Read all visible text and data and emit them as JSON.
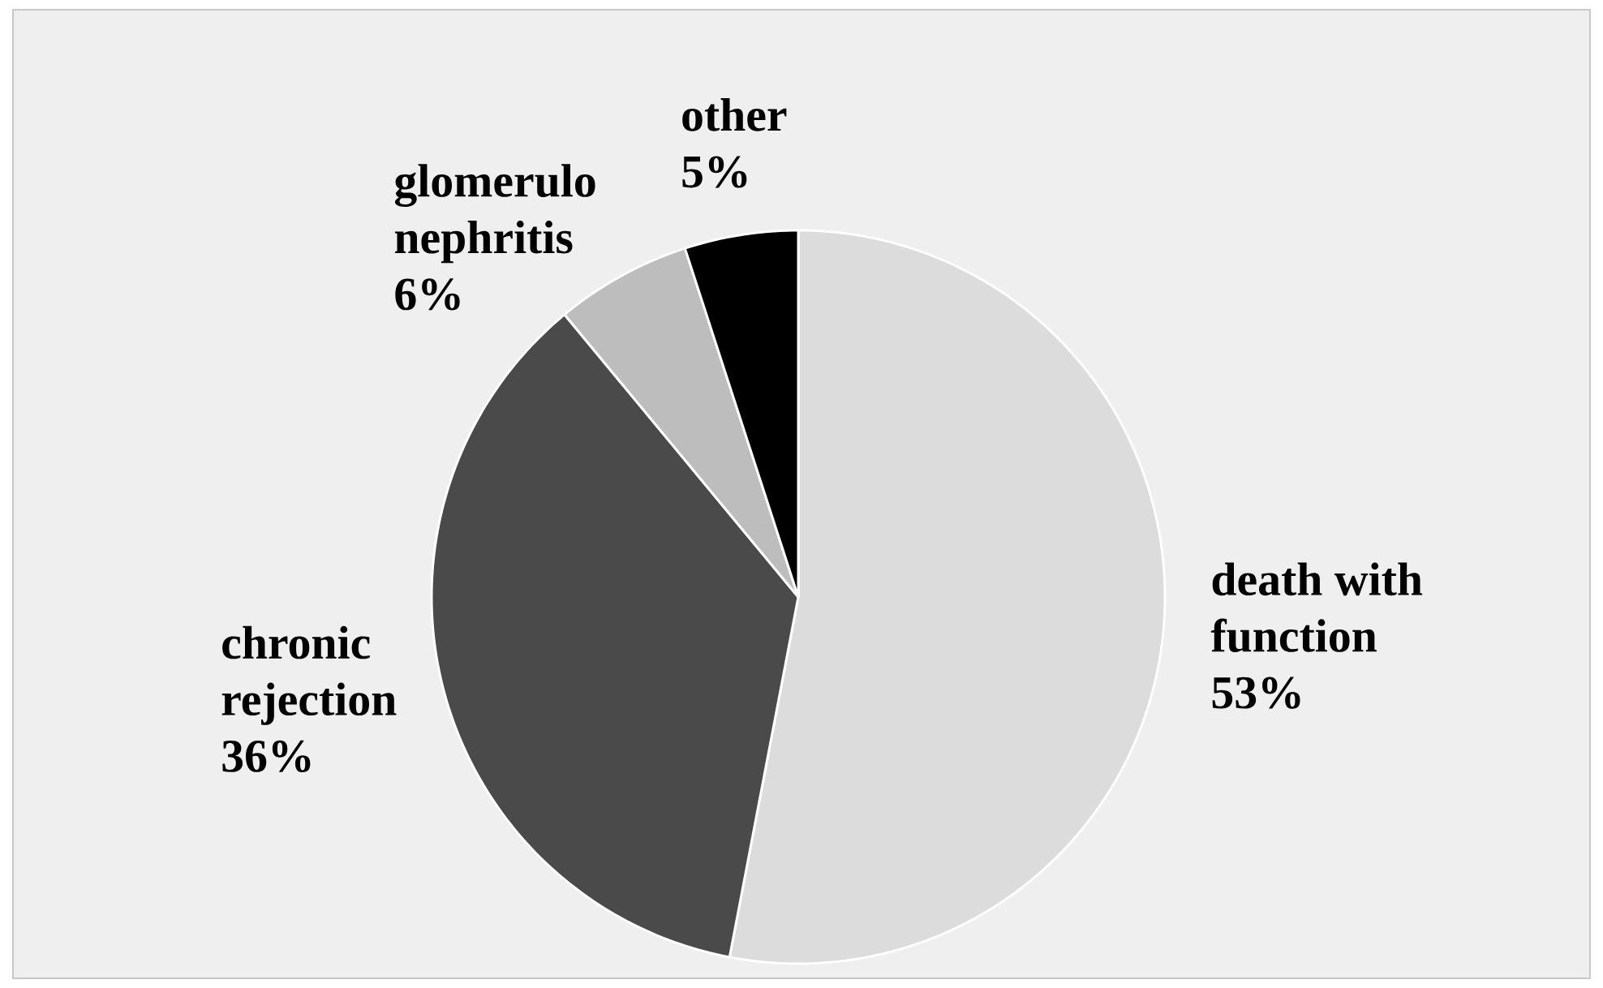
{
  "chart_data": {
    "type": "pie",
    "categories": [
      "death with function",
      "chronic rejection",
      "glomerulo nephritis",
      "other"
    ],
    "values": [
      53,
      36,
      6,
      5
    ],
    "value_labels": [
      "53%",
      "36%",
      "6%",
      "5%"
    ],
    "colors": [
      "#dcdcdc",
      "#4a4a4a",
      "#bdbdbd",
      "#000000"
    ]
  }
}
